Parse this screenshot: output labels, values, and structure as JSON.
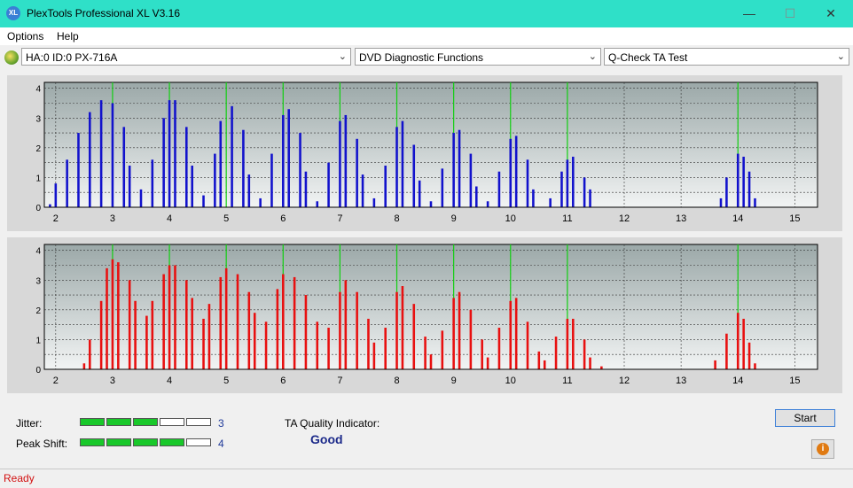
{
  "window": {
    "title": "PlexTools Professional XL V3.16",
    "icon_text": "XL",
    "minimize": "—",
    "maximize": "☐",
    "close": "✕"
  },
  "menu": {
    "items": [
      "Options",
      "Help"
    ]
  },
  "toolbar": {
    "drive": "HA:0 ID:0  PX-716A",
    "function": "DVD Diagnostic Functions",
    "test": "Q-Check TA Test",
    "arrow": "⌄"
  },
  "colors": {
    "top_bars": "#1212cc",
    "bottom_bars": "#e81010",
    "markers": "#12d012",
    "pass_segment": "#19c82a"
  },
  "chart_data": [
    {
      "type": "bar",
      "series": [
        {
          "values_at": [
            [
              1.9,
              0.1
            ],
            [
              2.0,
              0.8
            ],
            [
              2.2,
              1.6
            ],
            [
              2.4,
              2.5
            ],
            [
              2.6,
              3.2
            ],
            [
              2.8,
              3.6
            ],
            [
              3.0,
              3.5
            ],
            [
              3.2,
              2.7
            ],
            [
              3.3,
              1.4
            ],
            [
              3.5,
              0.6
            ],
            [
              3.7,
              1.6
            ],
            [
              3.9,
              3.0
            ],
            [
              4.0,
              3.6
            ],
            [
              4.1,
              3.6
            ],
            [
              4.3,
              2.7
            ],
            [
              4.4,
              1.4
            ],
            [
              4.6,
              0.4
            ],
            [
              4.8,
              1.8
            ],
            [
              4.9,
              2.9
            ],
            [
              5.1,
              3.4
            ],
            [
              5.3,
              2.6
            ],
            [
              5.4,
              1.1
            ],
            [
              5.6,
              0.3
            ],
            [
              5.8,
              1.8
            ],
            [
              6.0,
              3.1
            ],
            [
              6.1,
              3.3
            ],
            [
              6.3,
              2.5
            ],
            [
              6.4,
              1.2
            ],
            [
              6.6,
              0.2
            ],
            [
              6.8,
              1.5
            ],
            [
              7.0,
              2.9
            ],
            [
              7.1,
              3.1
            ],
            [
              7.3,
              2.3
            ],
            [
              7.4,
              1.1
            ],
            [
              7.6,
              0.3
            ],
            [
              7.8,
              1.4
            ],
            [
              8.0,
              2.7
            ],
            [
              8.1,
              2.9
            ],
            [
              8.3,
              2.1
            ],
            [
              8.4,
              0.9
            ],
            [
              8.6,
              0.2
            ],
            [
              8.8,
              1.3
            ],
            [
              9.0,
              2.5
            ],
            [
              9.1,
              2.6
            ],
            [
              9.3,
              1.8
            ],
            [
              9.4,
              0.7
            ],
            [
              9.6,
              0.2
            ],
            [
              9.8,
              1.2
            ],
            [
              10.0,
              2.3
            ],
            [
              10.1,
              2.4
            ],
            [
              10.3,
              1.6
            ],
            [
              10.4,
              0.6
            ],
            [
              10.7,
              0.3
            ],
            [
              10.9,
              1.2
            ],
            [
              11.0,
              1.6
            ],
            [
              11.1,
              1.7
            ],
            [
              11.3,
              1.0
            ],
            [
              11.4,
              0.6
            ],
            [
              13.7,
              0.3
            ],
            [
              13.8,
              1.0
            ],
            [
              14.0,
              1.8
            ],
            [
              14.1,
              1.7
            ],
            [
              14.2,
              1.2
            ],
            [
              14.3,
              0.3
            ]
          ]
        }
      ],
      "markers_x": [
        3,
        4,
        5,
        6,
        7,
        8,
        9,
        10,
        11,
        14
      ],
      "x_ticks": [
        "2",
        "3",
        "4",
        "5",
        "6",
        "7",
        "8",
        "9",
        "10",
        "11",
        "12",
        "13",
        "14",
        "15"
      ],
      "y_ticks": [
        "0",
        "0.5",
        "1",
        "1.5",
        "2",
        "2.5",
        "3",
        "3.5",
        "4"
      ],
      "xlim": [
        1.8,
        15.4
      ],
      "ylim": [
        0,
        4.2
      ],
      "grid": true
    },
    {
      "type": "bar",
      "series": [
        {
          "values_at": [
            [
              2.5,
              0.2
            ],
            [
              2.6,
              1.0
            ],
            [
              2.8,
              2.3
            ],
            [
              2.9,
              3.4
            ],
            [
              3.0,
              3.7
            ],
            [
              3.1,
              3.6
            ],
            [
              3.3,
              3.0
            ],
            [
              3.4,
              2.3
            ],
            [
              3.6,
              1.8
            ],
            [
              3.7,
              2.3
            ],
            [
              3.9,
              3.2
            ],
            [
              4.0,
              3.5
            ],
            [
              4.1,
              3.5
            ],
            [
              4.3,
              3.0
            ],
            [
              4.4,
              2.4
            ],
            [
              4.6,
              1.7
            ],
            [
              4.7,
              2.2
            ],
            [
              4.9,
              3.1
            ],
            [
              5.0,
              3.4
            ],
            [
              5.2,
              3.2
            ],
            [
              5.4,
              2.6
            ],
            [
              5.5,
              1.9
            ],
            [
              5.7,
              1.6
            ],
            [
              5.9,
              2.7
            ],
            [
              6.0,
              3.2
            ],
            [
              6.2,
              3.1
            ],
            [
              6.4,
              2.5
            ],
            [
              6.6,
              1.6
            ],
            [
              6.8,
              1.4
            ],
            [
              7.0,
              2.6
            ],
            [
              7.1,
              3.0
            ],
            [
              7.3,
              2.6
            ],
            [
              7.5,
              1.7
            ],
            [
              7.6,
              0.9
            ],
            [
              7.8,
              1.4
            ],
            [
              8.0,
              2.6
            ],
            [
              8.1,
              2.8
            ],
            [
              8.3,
              2.2
            ],
            [
              8.5,
              1.1
            ],
            [
              8.6,
              0.5
            ],
            [
              8.8,
              1.3
            ],
            [
              9.0,
              2.4
            ],
            [
              9.1,
              2.6
            ],
            [
              9.3,
              2.0
            ],
            [
              9.5,
              1.0
            ],
            [
              9.6,
              0.4
            ],
            [
              9.8,
              1.4
            ],
            [
              10.0,
              2.3
            ],
            [
              10.1,
              2.4
            ],
            [
              10.3,
              1.6
            ],
            [
              10.5,
              0.6
            ],
            [
              10.6,
              0.3
            ],
            [
              10.8,
              1.1
            ],
            [
              11.0,
              1.7
            ],
            [
              11.1,
              1.7
            ],
            [
              11.3,
              1.0
            ],
            [
              11.4,
              0.4
            ],
            [
              11.6,
              0.1
            ],
            [
              13.6,
              0.3
            ],
            [
              13.8,
              1.2
            ],
            [
              14.0,
              1.9
            ],
            [
              14.1,
              1.7
            ],
            [
              14.2,
              0.9
            ],
            [
              14.3,
              0.2
            ]
          ]
        }
      ],
      "markers_x": [
        3,
        4,
        5,
        6,
        7,
        8,
        9,
        10,
        11,
        14
      ],
      "x_ticks": [
        "2",
        "3",
        "4",
        "5",
        "6",
        "7",
        "8",
        "9",
        "10",
        "11",
        "12",
        "13",
        "14",
        "15"
      ],
      "y_ticks": [
        "0",
        "0.5",
        "1",
        "1.5",
        "2",
        "2.5",
        "3",
        "3.5",
        "4"
      ],
      "xlim": [
        1.8,
        15.4
      ],
      "ylim": [
        0,
        4.2
      ],
      "grid": true
    }
  ],
  "results": {
    "jitter_label": "Jitter:",
    "jitter_value": "3",
    "jitter_level": 3,
    "peak_label": "Peak Shift:",
    "peak_value": "4",
    "peak_level": 4,
    "meter_segments": 5,
    "quality_label": "TA Quality Indicator:",
    "quality_value": "Good",
    "start_label": "Start",
    "info_icon": "i"
  },
  "status": {
    "text": "Ready"
  }
}
